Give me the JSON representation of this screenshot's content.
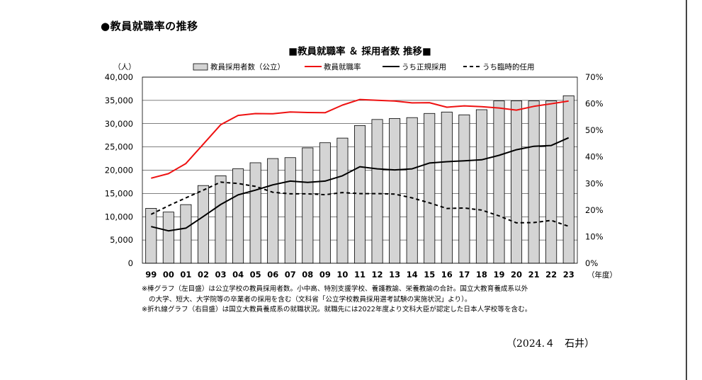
{
  "page": {
    "heading": "●教員就職率の推移",
    "signature": "（2024.４　石井）"
  },
  "notes": [
    "※棒グラフ（左目盛）は公立学校の教員採用者数。小中高、特別支援学校、養護教諭、栄養教諭の合計。国立大教育養成系以外",
    "の大学、短大、大学院等の卒業者の採用を含む（文科省「公立学校教員採用選考試験の実施状況」より）。",
    "※折れ線グラフ（右目盛）は国立大教員養成系の就職状況。就職先には2022年度より文科大臣が認定した日本人学校等を含む。"
  ],
  "chart_data": {
    "type": "bar",
    "title": "■教員就職率 ＆ 採用者数 推移■",
    "categories": [
      "99",
      "00",
      "01",
      "02",
      "03",
      "04",
      "05",
      "06",
      "07",
      "08",
      "09",
      "10",
      "11",
      "12",
      "13",
      "14",
      "15",
      "16",
      "17",
      "18",
      "19",
      "20",
      "21",
      "22",
      "23"
    ],
    "x_unit": "（年度）",
    "y_left": {
      "unit": "（人）",
      "ylim": [
        0,
        40000
      ],
      "ticks": [
        "0",
        "5,000",
        "10,000",
        "15,000",
        "20,000",
        "25,000",
        "30,000",
        "35,000",
        "40,000"
      ]
    },
    "y_right": {
      "ylim": [
        0,
        70
      ],
      "ticks": [
        "0%",
        "10%",
        "20%",
        "30%",
        "40%",
        "50%",
        "60%",
        "70%"
      ]
    },
    "grid": true,
    "legend_position": "top",
    "series": [
      {
        "name": "教員採用者数（公立）",
        "kind": "bar",
        "axis": "left",
        "color": "#d4d4d4",
        "values": [
          11800,
          11000,
          12600,
          16700,
          18800,
          20300,
          21600,
          22500,
          22700,
          24800,
          25900,
          26900,
          29600,
          30900,
          31100,
          31300,
          32200,
          32500,
          31900,
          33000,
          34900,
          34900,
          34900,
          34900,
          36000
        ]
      },
      {
        "name": "教員就職率",
        "kind": "line",
        "axis": "right",
        "color": "#ee1111",
        "dash": "solid",
        "values": [
          32.0,
          33.7,
          37.5,
          44.8,
          52.1,
          55.6,
          56.3,
          56.2,
          56.9,
          56.7,
          56.6,
          59.5,
          61.6,
          61.3,
          61.0,
          60.3,
          60.4,
          58.7,
          59.2,
          58.9,
          58.4,
          57.6,
          59.0,
          60.0,
          61.0
        ]
      },
      {
        "name": "うち正規採用",
        "kind": "line",
        "axis": "right",
        "color": "#000000",
        "dash": "solid",
        "values": [
          13.8,
          12.2,
          13.2,
          17.6,
          22.1,
          25.7,
          27.5,
          29.5,
          30.9,
          30.4,
          30.9,
          32.9,
          36.3,
          35.5,
          35.1,
          35.5,
          37.7,
          38.2,
          38.5,
          38.9,
          40.6,
          42.7,
          44.0,
          44.3,
          47.2
        ]
      },
      {
        "name": "うち臨時的任用",
        "kind": "line",
        "axis": "right",
        "color": "#000000",
        "dash": "dashed",
        "values": [
          18.4,
          21.6,
          24.6,
          27.5,
          30.5,
          30.0,
          28.9,
          26.7,
          26.1,
          26.1,
          25.8,
          26.6,
          26.2,
          26.2,
          26.0,
          24.6,
          22.7,
          20.6,
          20.8,
          20.0,
          17.8,
          15.2,
          15.3,
          16.1,
          13.9
        ]
      }
    ]
  }
}
